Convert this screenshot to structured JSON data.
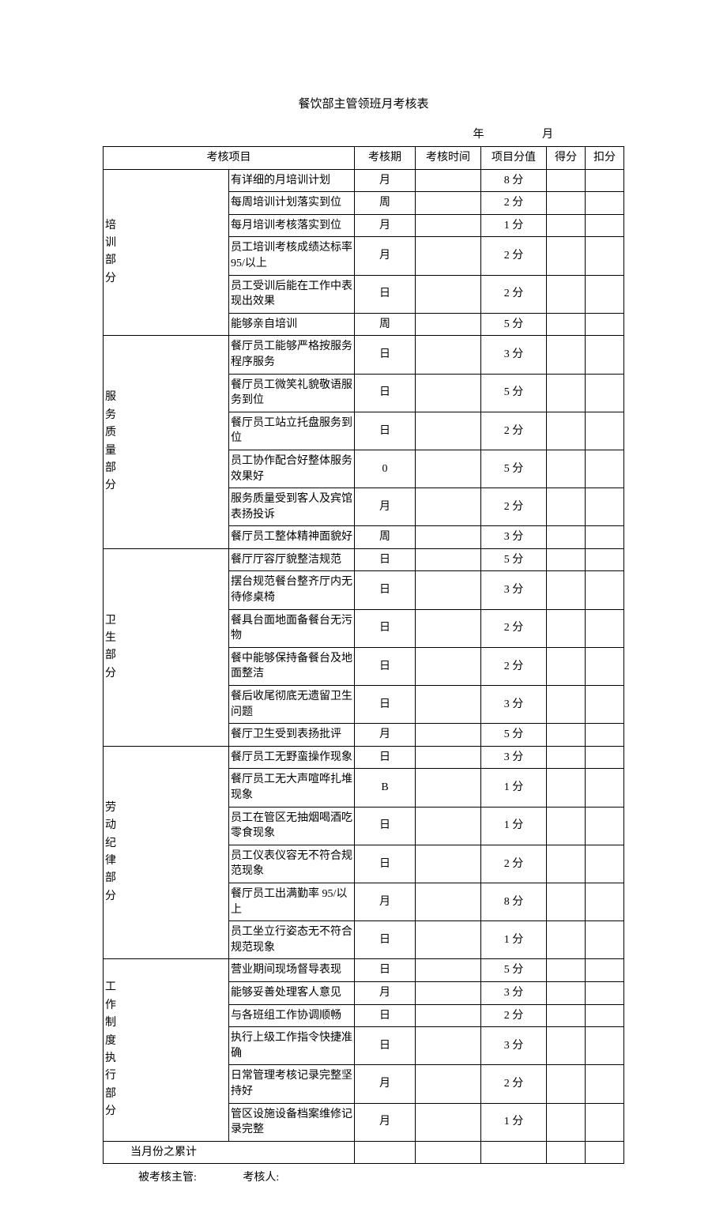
{
  "title": "餐饮部主管领班月考核表",
  "date": {
    "year_label": "年",
    "month_label": "月"
  },
  "headers": {
    "project": "考核项目",
    "period": "考核期",
    "time": "考核时间",
    "value": "项目分值",
    "score": "得分",
    "deduct": "扣分"
  },
  "groups": [
    {
      "label": "培训部分",
      "rows": [
        {
          "item": "有详细的月培训计划",
          "period": "月",
          "value": "8 分"
        },
        {
          "item": "每周培训计划落实到位",
          "period": "周",
          "value": "2 分"
        },
        {
          "item": "每月培训考核落实到位",
          "period": "月",
          "value": "1 分"
        },
        {
          "item": "员工培训考核成绩达标率 95/以上",
          "period": "月",
          "value": "2 分"
        },
        {
          "item": "员工受训后能在工作中表现出效果",
          "period": "日",
          "value": "2 分"
        },
        {
          "item": "能够亲自培训",
          "period": "周",
          "value": "5 分"
        }
      ]
    },
    {
      "label": "服务质量部分",
      "rows": [
        {
          "item": "餐厅员工能够严格按服务程序服务",
          "period": "日",
          "value": "3 分"
        },
        {
          "item": "餐厅员工微笑礼貌敬语服务到位",
          "period": "日",
          "value": "5 分"
        },
        {
          "item": "餐厅员工站立托盘服务到位",
          "period": "日",
          "value": "2 分"
        },
        {
          "item": "员工协作配合好整体服务效果好",
          "period": "0",
          "value": "5 分"
        },
        {
          "item": "服务质量受到客人及宾馆表扬投诉",
          "period": "月",
          "value": "2 分"
        },
        {
          "item": "餐厅员工整体精神面貌好",
          "period": "周",
          "value": "3 分"
        }
      ]
    },
    {
      "label": "卫生部分",
      "rows": [
        {
          "item": "餐厅厅容厅貌整洁规范",
          "period": "日",
          "value": "5 分"
        },
        {
          "item": "摆台规范餐台整齐厅内无待修桌椅",
          "period": "日",
          "value": "3 分"
        },
        {
          "item": "餐具台面地面备餐台无污物",
          "period": "日",
          "value": "2 分"
        },
        {
          "item": "餐中能够保持备餐台及地面整洁",
          "period": "日",
          "value": "2 分"
        },
        {
          "item": "餐后收尾彻底无遗留卫生问题",
          "period": "日",
          "value": "3 分"
        },
        {
          "item": "餐厅卫生受到表扬批评",
          "period": "月",
          "value": "5 分"
        }
      ]
    },
    {
      "label": "劳动纪律部分",
      "rows": [
        {
          "item": "餐厅员工无野蛮操作现象",
          "period": "日",
          "value": "3 分"
        },
        {
          "item": "餐厅员工无大声喧哗扎堆现象",
          "period": "B",
          "value": "1 分"
        },
        {
          "item": "员工在管区无抽烟喝酒吃零食现象",
          "period": "日",
          "value": "1 分"
        },
        {
          "item": "员工仪表仪容无不符合规范现象",
          "period": "日",
          "value": "2 分"
        },
        {
          "item": "餐厅员工出满勤率 95/以上",
          "period": "月",
          "value": "8 分"
        },
        {
          "item": "员工坐立行姿态无不符合规范现象",
          "period": "日",
          "value": "1 分"
        }
      ]
    },
    {
      "label": "工作制度执行部分",
      "rows": [
        {
          "item": "营业期间现场督导表现",
          "period": "日",
          "value": "5 分"
        },
        {
          "item": "能够妥善处理客人意见",
          "period": "月",
          "value": "3 分"
        },
        {
          "item": "与各班组工作协调顺畅",
          "period": "日",
          "value": "2 分"
        },
        {
          "item": "执行上级工作指令快捷准确",
          "period": "日",
          "value": "3 分"
        },
        {
          "item": "日常管理考核记录完整坚持好",
          "period": "月",
          "value": "2 分"
        },
        {
          "item": "管区设施设备档案维修记录完整",
          "period": "月",
          "value": "1 分"
        }
      ]
    }
  ],
  "subtotal": {
    "label": "当月份之累计"
  },
  "footer": {
    "reviewee": "被考核主管:",
    "reviewer": "考核人:"
  },
  "colors": {
    "border": "#000000",
    "background": "#ffffff"
  }
}
